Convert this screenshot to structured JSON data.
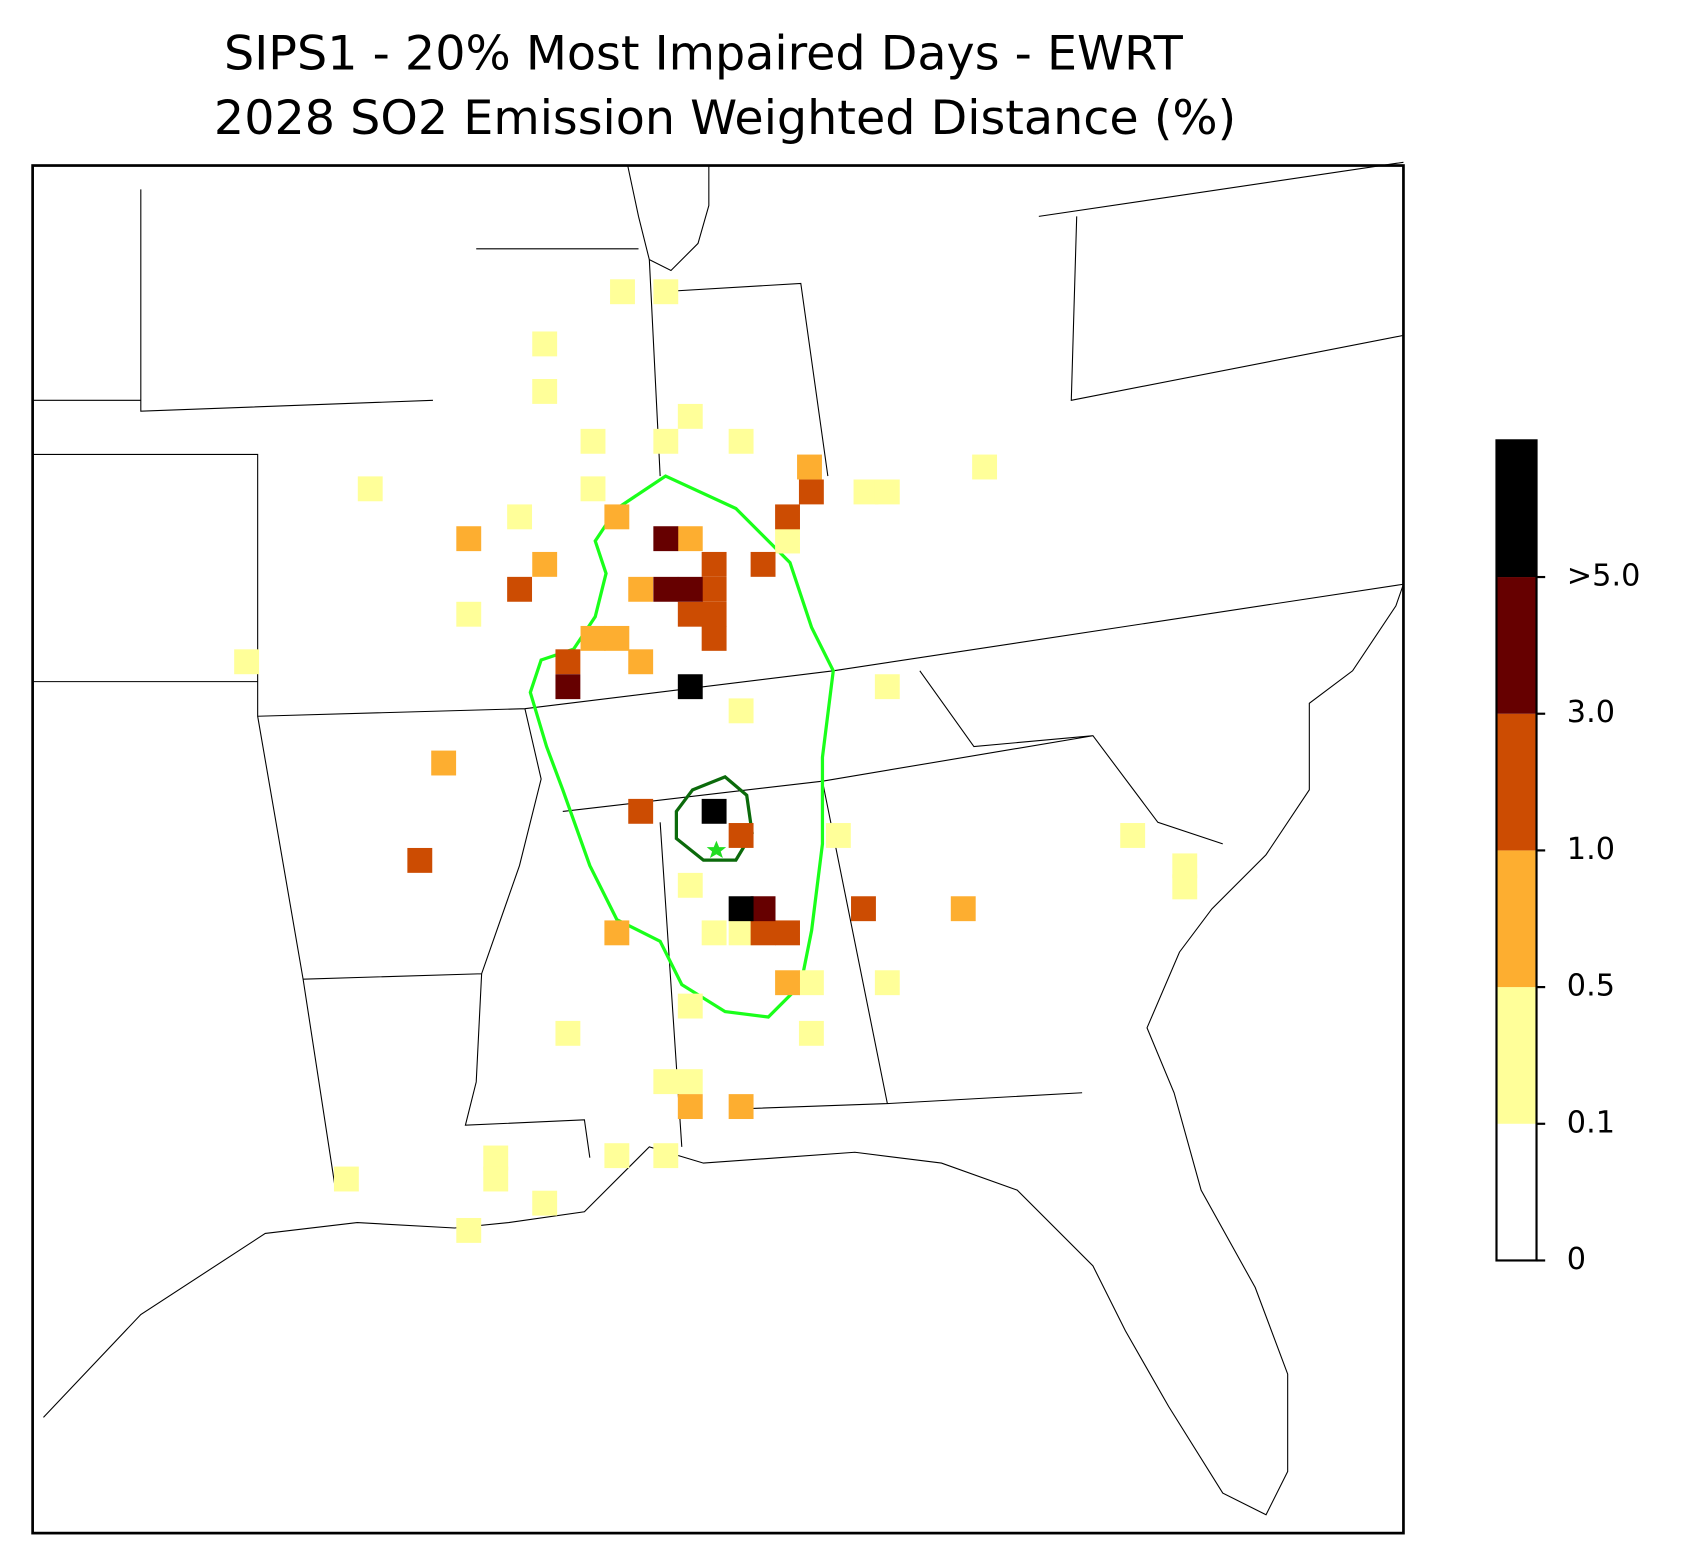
{
  "chart_data": {
    "type": "map",
    "title": "SIPS1 - 20% Most Impaired Days - EWRT",
    "subtitle": "2028 SO2 Emission Weighted Distance (%)",
    "lon": [
      -87.6,
      -86.91,
      -88.84,
      -88.84,
      -88.07,
      -86.91,
      -85.71,
      -86.52,
      -88.07,
      -91.62,
      -89.24,
      -90.05,
      -93.59,
      -83.38,
      -85.71,
      -81.83,
      -83.72,
      -83.38,
      -79.47,
      -78.64,
      -78.64,
      -86.52,
      -86.14,
      -85.71,
      -84.16,
      -83.38,
      -84.59,
      -86.52,
      -88.47,
      -84.59,
      -86.91,
      -86.52,
      -87.69,
      -86.91,
      -89.62,
      -89.62,
      -92.0,
      -88.84,
      -90.05,
      -84.97,
      -90.05,
      -88.84,
      -87.69,
      -86.52,
      -88.07,
      -87.69,
      -87.31,
      -87.31,
      -84.62,
      -90.45,
      -82.17,
      -87.69,
      -84.97,
      -86.52,
      -85.71,
      -89.24,
      -88.47,
      -86.14,
      -86.14,
      -86.14,
      -86.14,
      -85.36,
      -84.97,
      -84.59,
      -86.52,
      -87.31,
      -85.71,
      -83.76,
      -90.83,
      -85.36,
      -84.97,
      -86.91,
      -88.47,
      -86.52,
      -86.91,
      -85.36,
      -86.52,
      -86.14,
      -85.71
    ],
    "lat": [
      41.88,
      41.88,
      41.21,
      40.6,
      39.96,
      39.96,
      39.96,
      40.28,
      39.35,
      39.35,
      38.99,
      37.74,
      37.13,
      36.81,
      36.5,
      39.63,
      39.31,
      39.31,
      34.9,
      34.51,
      34.24,
      34.26,
      33.65,
      33.65,
      34.9,
      33.01,
      33.01,
      32.71,
      32.36,
      32.36,
      31.74,
      31.74,
      30.79,
      30.79,
      30.76,
      30.49,
      30.49,
      30.18,
      29.83,
      38.68,
      38.71,
      38.38,
      38.99,
      38.71,
      37.43,
      37.43,
      37.13,
      38.06,
      39.63,
      35.83,
      33.96,
      33.65,
      33.01,
      31.42,
      31.42,
      38.06,
      37.13,
      38.38,
      38.06,
      37.74,
      37.43,
      38.38,
      38.99,
      39.31,
      37.74,
      35.21,
      34.9,
      33.96,
      34.58,
      33.65,
      33.65,
      38.71,
      36.81,
      38.06,
      38.06,
      33.96,
      36.81,
      35.21,
      33.96
    ],
    "values": [
      0.3,
      0.3,
      0.3,
      0.3,
      0.3,
      0.3,
      0.3,
      0.3,
      0.3,
      0.3,
      0.3,
      0.3,
      0.3,
      0.3,
      0.3,
      0.3,
      0.3,
      0.3,
      0.3,
      0.3,
      0.3,
      0.3,
      0.3,
      0.3,
      0.3,
      0.3,
      0.3,
      0.3,
      0.3,
      0.3,
      0.3,
      0.3,
      0.3,
      0.3,
      0.3,
      0.3,
      0.3,
      0.3,
      0.3,
      0.3,
      0.7,
      0.7,
      0.7,
      0.7,
      0.7,
      0.7,
      0.7,
      0.7,
      0.7,
      0.7,
      0.7,
      0.7,
      0.7,
      0.7,
      0.7,
      2,
      2,
      2,
      2,
      2,
      2,
      2,
      2,
      2,
      2,
      2,
      2,
      2,
      2,
      2,
      2,
      4,
      4,
      4,
      4,
      4,
      6,
      6,
      6
    ],
    "colorbar": {
      "ticks": [
        0,
        0.1,
        0.5,
        {
          "value": 1,
          "label": "1.0"
        },
        {
          "value": 3,
          "label": "3.0"
        },
        {
          "value": 5,
          "label": ">5.0"
        }
      ],
      "colors": [
        "#ffffff",
        "#ffff99",
        "#fdae30",
        "#cc4c02",
        "#660000",
        "#000000"
      ]
    }
  }
}
